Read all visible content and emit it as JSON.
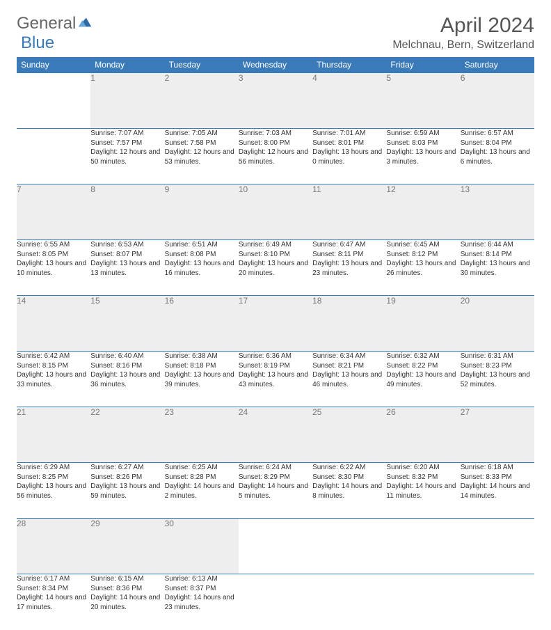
{
  "brand": {
    "part1": "General",
    "part2": "Blue"
  },
  "title": "April 2024",
  "location": "Melchnau, Bern, Switzerland",
  "colors": {
    "header_bg": "#3a7ab8",
    "header_text": "#ffffff",
    "daynum_bg": "#eeeeee",
    "daynum_text": "#777777",
    "border": "#3a7ab8",
    "body_text": "#333333"
  },
  "weekdays": [
    "Sunday",
    "Monday",
    "Tuesday",
    "Wednesday",
    "Thursday",
    "Friday",
    "Saturday"
  ],
  "weeks": [
    [
      null,
      {
        "n": "1",
        "sr": "Sunrise: 7:07 AM",
        "ss": "Sunset: 7:57 PM",
        "dl": "Daylight: 12 hours and 50 minutes."
      },
      {
        "n": "2",
        "sr": "Sunrise: 7:05 AM",
        "ss": "Sunset: 7:58 PM",
        "dl": "Daylight: 12 hours and 53 minutes."
      },
      {
        "n": "3",
        "sr": "Sunrise: 7:03 AM",
        "ss": "Sunset: 8:00 PM",
        "dl": "Daylight: 12 hours and 56 minutes."
      },
      {
        "n": "4",
        "sr": "Sunrise: 7:01 AM",
        "ss": "Sunset: 8:01 PM",
        "dl": "Daylight: 13 hours and 0 minutes."
      },
      {
        "n": "5",
        "sr": "Sunrise: 6:59 AM",
        "ss": "Sunset: 8:03 PM",
        "dl": "Daylight: 13 hours and 3 minutes."
      },
      {
        "n": "6",
        "sr": "Sunrise: 6:57 AM",
        "ss": "Sunset: 8:04 PM",
        "dl": "Daylight: 13 hours and 6 minutes."
      }
    ],
    [
      {
        "n": "7",
        "sr": "Sunrise: 6:55 AM",
        "ss": "Sunset: 8:05 PM",
        "dl": "Daylight: 13 hours and 10 minutes."
      },
      {
        "n": "8",
        "sr": "Sunrise: 6:53 AM",
        "ss": "Sunset: 8:07 PM",
        "dl": "Daylight: 13 hours and 13 minutes."
      },
      {
        "n": "9",
        "sr": "Sunrise: 6:51 AM",
        "ss": "Sunset: 8:08 PM",
        "dl": "Daylight: 13 hours and 16 minutes."
      },
      {
        "n": "10",
        "sr": "Sunrise: 6:49 AM",
        "ss": "Sunset: 8:10 PM",
        "dl": "Daylight: 13 hours and 20 minutes."
      },
      {
        "n": "11",
        "sr": "Sunrise: 6:47 AM",
        "ss": "Sunset: 8:11 PM",
        "dl": "Daylight: 13 hours and 23 minutes."
      },
      {
        "n": "12",
        "sr": "Sunrise: 6:45 AM",
        "ss": "Sunset: 8:12 PM",
        "dl": "Daylight: 13 hours and 26 minutes."
      },
      {
        "n": "13",
        "sr": "Sunrise: 6:44 AM",
        "ss": "Sunset: 8:14 PM",
        "dl": "Daylight: 13 hours and 30 minutes."
      }
    ],
    [
      {
        "n": "14",
        "sr": "Sunrise: 6:42 AM",
        "ss": "Sunset: 8:15 PM",
        "dl": "Daylight: 13 hours and 33 minutes."
      },
      {
        "n": "15",
        "sr": "Sunrise: 6:40 AM",
        "ss": "Sunset: 8:16 PM",
        "dl": "Daylight: 13 hours and 36 minutes."
      },
      {
        "n": "16",
        "sr": "Sunrise: 6:38 AM",
        "ss": "Sunset: 8:18 PM",
        "dl": "Daylight: 13 hours and 39 minutes."
      },
      {
        "n": "17",
        "sr": "Sunrise: 6:36 AM",
        "ss": "Sunset: 8:19 PM",
        "dl": "Daylight: 13 hours and 43 minutes."
      },
      {
        "n": "18",
        "sr": "Sunrise: 6:34 AM",
        "ss": "Sunset: 8:21 PM",
        "dl": "Daylight: 13 hours and 46 minutes."
      },
      {
        "n": "19",
        "sr": "Sunrise: 6:32 AM",
        "ss": "Sunset: 8:22 PM",
        "dl": "Daylight: 13 hours and 49 minutes."
      },
      {
        "n": "20",
        "sr": "Sunrise: 6:31 AM",
        "ss": "Sunset: 8:23 PM",
        "dl": "Daylight: 13 hours and 52 minutes."
      }
    ],
    [
      {
        "n": "21",
        "sr": "Sunrise: 6:29 AM",
        "ss": "Sunset: 8:25 PM",
        "dl": "Daylight: 13 hours and 56 minutes."
      },
      {
        "n": "22",
        "sr": "Sunrise: 6:27 AM",
        "ss": "Sunset: 8:26 PM",
        "dl": "Daylight: 13 hours and 59 minutes."
      },
      {
        "n": "23",
        "sr": "Sunrise: 6:25 AM",
        "ss": "Sunset: 8:28 PM",
        "dl": "Daylight: 14 hours and 2 minutes."
      },
      {
        "n": "24",
        "sr": "Sunrise: 6:24 AM",
        "ss": "Sunset: 8:29 PM",
        "dl": "Daylight: 14 hours and 5 minutes."
      },
      {
        "n": "25",
        "sr": "Sunrise: 6:22 AM",
        "ss": "Sunset: 8:30 PM",
        "dl": "Daylight: 14 hours and 8 minutes."
      },
      {
        "n": "26",
        "sr": "Sunrise: 6:20 AM",
        "ss": "Sunset: 8:32 PM",
        "dl": "Daylight: 14 hours and 11 minutes."
      },
      {
        "n": "27",
        "sr": "Sunrise: 6:18 AM",
        "ss": "Sunset: 8:33 PM",
        "dl": "Daylight: 14 hours and 14 minutes."
      }
    ],
    [
      {
        "n": "28",
        "sr": "Sunrise: 6:17 AM",
        "ss": "Sunset: 8:34 PM",
        "dl": "Daylight: 14 hours and 17 minutes."
      },
      {
        "n": "29",
        "sr": "Sunrise: 6:15 AM",
        "ss": "Sunset: 8:36 PM",
        "dl": "Daylight: 14 hours and 20 minutes."
      },
      {
        "n": "30",
        "sr": "Sunrise: 6:13 AM",
        "ss": "Sunset: 8:37 PM",
        "dl": "Daylight: 14 hours and 23 minutes."
      },
      null,
      null,
      null,
      null
    ]
  ]
}
